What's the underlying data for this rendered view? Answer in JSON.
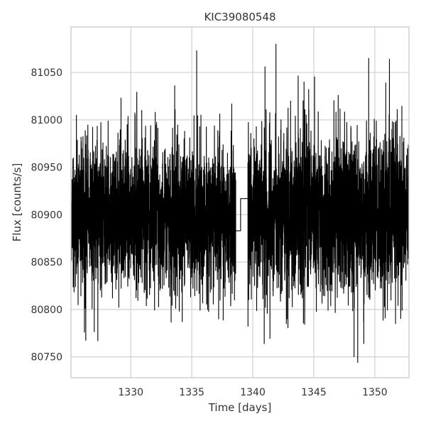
{
  "chart_data": {
    "type": "line",
    "title": "KIC39080548",
    "xlabel": "Time [days]",
    "ylabel": "Flux [counts/s]",
    "xlim": [
      1325.1,
      1352.8
    ],
    "ylim": [
      80728,
      81098
    ],
    "xticks": [
      1330,
      1335,
      1340,
      1345,
      1350
    ],
    "yticks": [
      80750,
      80800,
      80850,
      80900,
      80950,
      81000,
      81050
    ],
    "grid": true,
    "line_color": "#000000",
    "series": [
      {
        "segments": [
          {
            "x_range": [
              1325.1,
              1338.6
            ],
            "baseline": 80900,
            "scatter_sd": 45,
            "min": 80766,
            "max": 81073,
            "spikes": [
              [
                1325.1,
                80990
              ],
              [
                1326.2,
                80776
              ],
              [
                1327.3,
                80767
              ],
              [
                1328.5,
                80812
              ],
              [
                1329.2,
                81023
              ],
              [
                1330.9,
                81010
              ],
              [
                1332.0,
                81008
              ],
              [
                1333.6,
                81036
              ],
              [
                1335.4,
                81073
              ],
              [
                1336.3,
                80800
              ],
              [
                1337.2,
                80790
              ],
              [
                1338.5,
                80810
              ]
            ]
          },
          {
            "x_range": [
              1338.6,
              1339.6
            ],
            "step_values": [
              [
                1338.6,
                80883
              ],
              [
                1339.0,
                80883
              ],
              [
                1339.0,
                80917
              ],
              [
                1339.6,
                80917
              ]
            ]
          },
          {
            "x_range": [
              1339.6,
              1352.8
            ],
            "baseline": 80900,
            "scatter_sd": 50,
            "min": 80744,
            "max": 81080,
            "spikes": [
              [
                1341.0,
                81056
              ],
              [
                1341.9,
                81080
              ],
              [
                1342.8,
                80790
              ],
              [
                1343.1,
                81020
              ],
              [
                1344.2,
                81040
              ],
              [
                1347.0,
                81026
              ],
              [
                1348.3,
                80750
              ],
              [
                1348.6,
                80744
              ],
              [
                1349.1,
                80764
              ],
              [
                1349.5,
                81065
              ],
              [
                1350.9,
                81039
              ],
              [
                1351.2,
                81064
              ],
              [
                1351.7,
                80785
              ]
            ]
          }
        ]
      }
    ]
  }
}
